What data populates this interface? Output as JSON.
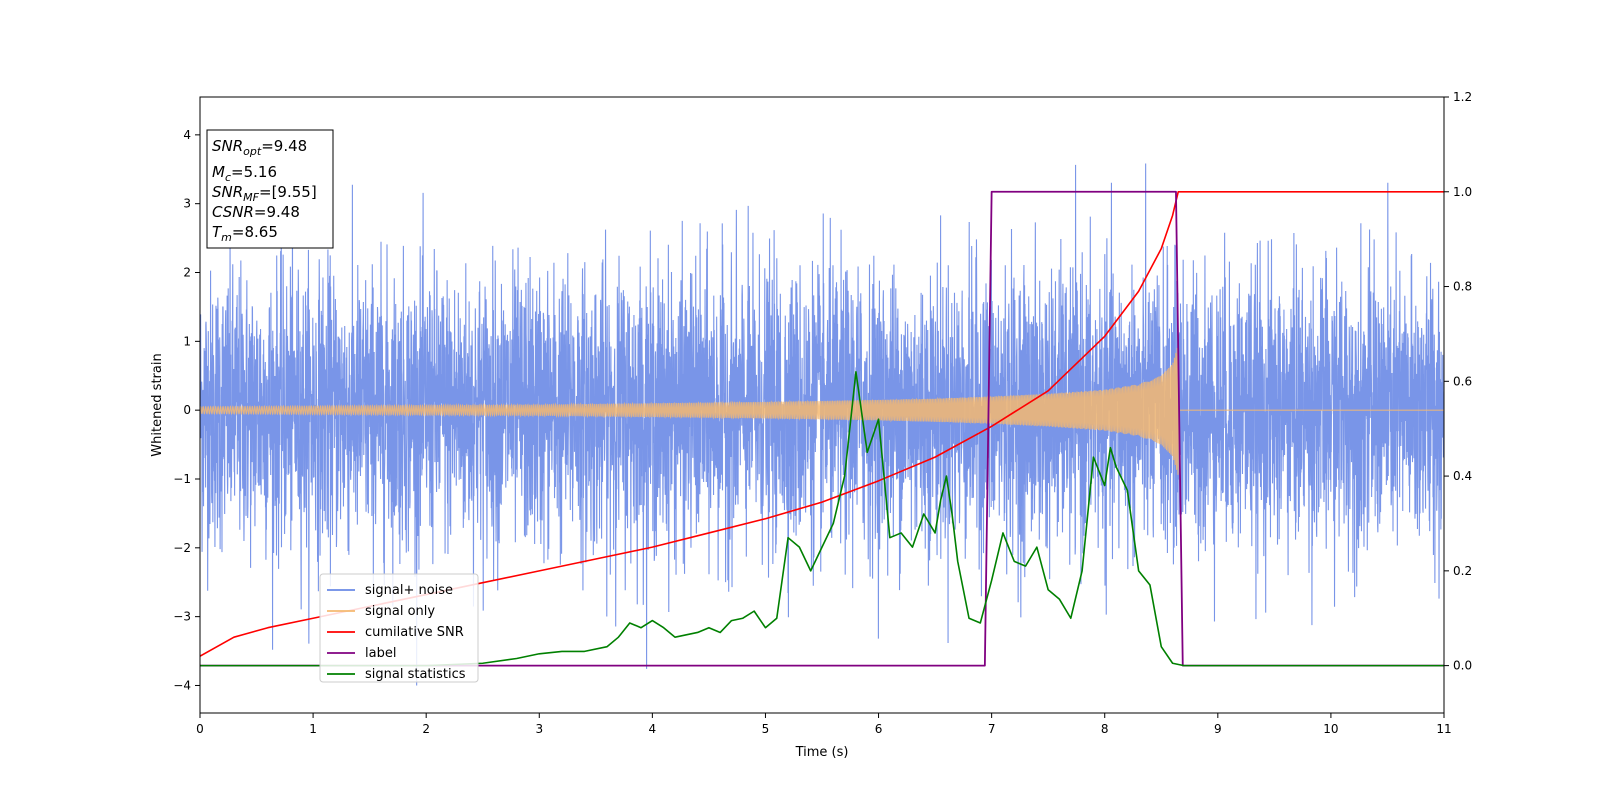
{
  "chart_data": {
    "type": "line",
    "xlabel": "Time (s)",
    "ylabel": "Whitened strain",
    "xlim": [
      0,
      11
    ],
    "ylim": [
      -4.4,
      4.55
    ],
    "y2lim": [
      -0.1,
      1.2
    ],
    "x_ticks": [
      0,
      1,
      2,
      3,
      4,
      5,
      6,
      7,
      8,
      9,
      10,
      11
    ],
    "y_ticks": [
      -4,
      -3,
      -2,
      -1,
      0,
      1,
      2,
      3,
      4
    ],
    "y2_ticks": [
      "0.0",
      "0.2",
      "0.4",
      "0.6",
      "0.8",
      "1.0",
      "1.2"
    ],
    "grid": false,
    "legend_placement": "lower-left",
    "annotation": {
      "lines": [
        {
          "main": "SNR",
          "sub": "opt",
          "value": "=9.48"
        },
        {
          "main": "M",
          "sub": "c",
          "value": "=5.16"
        },
        {
          "main": "SNR",
          "sub": "MF",
          "value": "=[9.55]"
        },
        {
          "main": "CSNR",
          "sub": "",
          "value": "=9.48"
        },
        {
          "main": "T",
          "sub": "m",
          "value": "=8.65"
        }
      ]
    },
    "colors": {
      "signal_noise": "#6a8ae6",
      "signal_only": "#f5b971",
      "cumulative_snr": "#ff0000",
      "label": "#800080",
      "signal_statistics": "#008000"
    },
    "series": [
      {
        "name": "signal+ noise",
        "axis": "left",
        "description_style": "noise band",
        "std": 1.0,
        "range_x": [
          0,
          11
        ]
      },
      {
        "name": "signal only",
        "axis": "left",
        "envelope_x": [
          0,
          1,
          2,
          3,
          4,
          5,
          6,
          6.5,
          7,
          7.5,
          8,
          8.3,
          8.5,
          8.6,
          8.65,
          8.66,
          11
        ],
        "envelope_y": [
          0.05,
          0.06,
          0.07,
          0.08,
          0.1,
          0.12,
          0.15,
          0.17,
          0.2,
          0.24,
          0.3,
          0.38,
          0.5,
          0.7,
          1.0,
          0.0,
          0.0
        ]
      },
      {
        "name": "cumilative SNR",
        "axis": "right",
        "x": [
          0,
          0.3,
          0.6,
          1,
          1.5,
          2,
          2.5,
          3,
          3.5,
          4,
          4.5,
          5,
          5.5,
          6,
          6.5,
          7,
          7.5,
          8,
          8.3,
          8.5,
          8.6,
          8.65,
          11
        ],
        "y": [
          0.02,
          0.06,
          0.08,
          0.1,
          0.125,
          0.15,
          0.175,
          0.2,
          0.225,
          0.25,
          0.28,
          0.31,
          0.345,
          0.39,
          0.44,
          0.505,
          0.58,
          0.695,
          0.79,
          0.88,
          0.95,
          1.0,
          1.0
        ]
      },
      {
        "name": "label",
        "axis": "right",
        "x": [
          0,
          6.94,
          7.0,
          8.63,
          8.69,
          11
        ],
        "y": [
          0,
          0,
          1,
          1,
          0,
          0
        ]
      },
      {
        "name": "signal statistics",
        "axis": "right",
        "x": [
          0,
          1,
          2,
          2.5,
          2.8,
          3.0,
          3.2,
          3.4,
          3.6,
          3.7,
          3.8,
          3.9,
          4.0,
          4.1,
          4.2,
          4.3,
          4.4,
          4.5,
          4.6,
          4.7,
          4.8,
          4.9,
          5.0,
          5.1,
          5.2,
          5.3,
          5.4,
          5.5,
          5.6,
          5.7,
          5.8,
          5.9,
          6.0,
          6.1,
          6.2,
          6.3,
          6.4,
          6.5,
          6.55,
          6.6,
          6.65,
          6.7,
          6.8,
          6.9,
          7.0,
          7.1,
          7.2,
          7.3,
          7.4,
          7.5,
          7.6,
          7.7,
          7.8,
          7.9,
          8.0,
          8.05,
          8.1,
          8.2,
          8.3,
          8.4,
          8.5,
          8.6,
          8.7,
          9,
          10,
          11
        ],
        "y": [
          0.0,
          0.0,
          0.0,
          0.005,
          0.015,
          0.025,
          0.03,
          0.03,
          0.04,
          0.06,
          0.09,
          0.08,
          0.095,
          0.08,
          0.06,
          0.065,
          0.07,
          0.08,
          0.07,
          0.095,
          0.1,
          0.115,
          0.08,
          0.1,
          0.27,
          0.25,
          0.2,
          0.25,
          0.3,
          0.4,
          0.62,
          0.45,
          0.52,
          0.27,
          0.28,
          0.25,
          0.32,
          0.28,
          0.35,
          0.4,
          0.32,
          0.22,
          0.1,
          0.09,
          0.18,
          0.28,
          0.22,
          0.21,
          0.25,
          0.16,
          0.14,
          0.1,
          0.2,
          0.44,
          0.38,
          0.46,
          0.42,
          0.37,
          0.2,
          0.17,
          0.04,
          0.005,
          0.0,
          0.0,
          0.0,
          0.0
        ]
      }
    ]
  }
}
